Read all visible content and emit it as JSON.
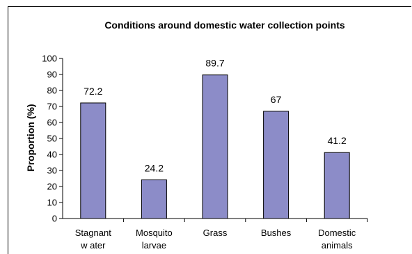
{
  "chart_data": {
    "type": "bar",
    "title": "Conditions around domestic water collection points",
    "xlabel": "",
    "ylabel": "Proportion (%)",
    "ylim": [
      0,
      100
    ],
    "yticks": [
      "0",
      "10",
      "20",
      "30",
      "40",
      "50",
      "60",
      "70",
      "80",
      "90",
      "100"
    ],
    "categories": [
      [
        "Stagnant",
        "w ater"
      ],
      [
        "Mosquito",
        "larvae"
      ],
      [
        "Grass"
      ],
      [
        "Bushes"
      ],
      [
        "Domestic",
        "animals"
      ]
    ],
    "values": [
      72.2,
      24.2,
      89.7,
      67,
      41.2
    ],
    "data_labels": [
      "72.2",
      "24.2",
      "89.7",
      "67",
      "41.2"
    ],
    "bar_color": "#8c8cc8",
    "bar_stroke": "#000000",
    "grid": false,
    "legend": "none"
  }
}
